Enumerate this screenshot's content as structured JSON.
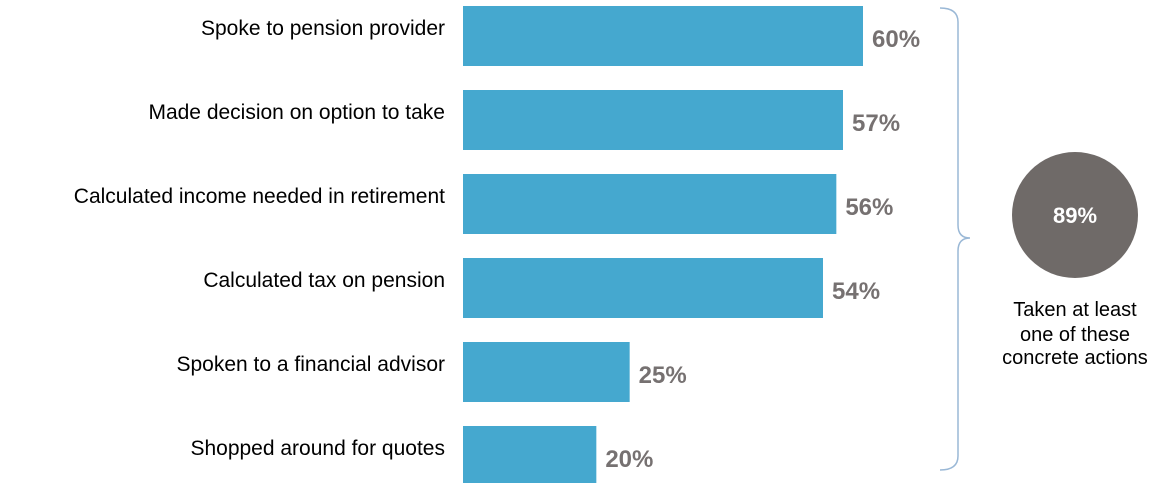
{
  "colors": {
    "bar": "#45a8cf",
    "value_label": "#767171",
    "bracket": "#9ab8d6",
    "summary_circle": "#6f6a68"
  },
  "chart_data": {
    "type": "bar",
    "orientation": "horizontal",
    "categories": [
      "Spoke to pension provider",
      "Made decision on option to take",
      "Calculated income needed in retirement",
      "Calculated tax on pension",
      "Spoken to a financial advisor",
      "Shopped around for quotes"
    ],
    "values": [
      60,
      57,
      56,
      54,
      25,
      20
    ],
    "value_labels": [
      "60%",
      "57%",
      "56%",
      "54%",
      "25%",
      "20%"
    ],
    "xlim": [
      0,
      60
    ],
    "grid": false,
    "title": "",
    "xlabel": "",
    "ylabel": ""
  },
  "summary": {
    "value": "89%",
    "caption_lines": [
      "Taken at least",
      "one of these",
      "concrete actions"
    ]
  }
}
